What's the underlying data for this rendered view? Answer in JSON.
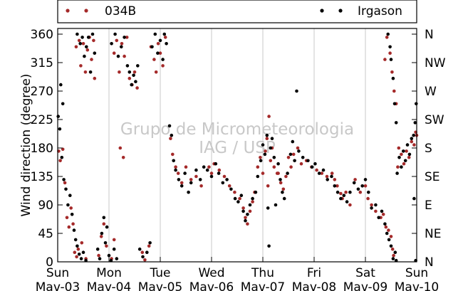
{
  "chart_data": {
    "type": "scatter",
    "ylabel": "Wind direction (degree)",
    "ylim": [
      0,
      360
    ],
    "yticks": [
      0,
      45,
      90,
      135,
      180,
      225,
      270,
      315,
      360
    ],
    "compass_ticks": [
      "N",
      "NE",
      "E",
      "SE",
      "S",
      "SW",
      "W",
      "NW",
      "N"
    ],
    "x_day_range": [
      0,
      7
    ],
    "x_ticks": [
      {
        "day": 0,
        "weekday": "Sun",
        "date": "Mav-03"
      },
      {
        "day": 1,
        "weekday": "Mon",
        "date": "Mav-04"
      },
      {
        "day": 2,
        "weekday": "Tue",
        "date": "Mav-05"
      },
      {
        "day": 3,
        "weekday": "Wed",
        "date": "Mav-06"
      },
      {
        "day": 4,
        "weekday": "Thu",
        "date": "Mav-07"
      },
      {
        "day": 5,
        "weekday": "Fri",
        "date": "Mav-08"
      },
      {
        "day": 6,
        "weekday": "Sat",
        "date": "Mav-09"
      },
      {
        "day": 7,
        "weekday": "Sun",
        "date": "Mav-10"
      }
    ],
    "grid": "vertical",
    "legend_placement": "top",
    "watermark": [
      "Grupo de Micrometeorologia",
      "IAG / USP"
    ],
    "series": [
      {
        "name": "034B",
        "color": "#a52a2a",
        "points": [
          [
            0.02,
            175
          ],
          [
            0.05,
            160
          ],
          [
            0.1,
            178
          ],
          [
            0.14,
            125
          ],
          [
            0.18,
            70
          ],
          [
            0.22,
            55
          ],
          [
            0.26,
            85
          ],
          [
            0.3,
            60
          ],
          [
            0.33,
            15
          ],
          [
            0.37,
            8
          ],
          [
            0.4,
            20
          ],
          [
            0.47,
            30
          ],
          [
            0.55,
            5
          ],
          [
            0.36,
            340
          ],
          [
            0.42,
            350
          ],
          [
            0.45,
            310
          ],
          [
            0.5,
            345
          ],
          [
            0.54,
            300
          ],
          [
            0.58,
            335
          ],
          [
            0.62,
            355
          ],
          [
            0.66,
            320
          ],
          [
            0.7,
            350
          ],
          [
            0.72,
            290
          ],
          [
            0.8,
            10
          ],
          [
            0.85,
            40
          ],
          [
            0.9,
            60
          ],
          [
            0.95,
            25
          ],
          [
            1.05,
            5
          ],
          [
            1.1,
            35
          ],
          [
            1.22,
            180
          ],
          [
            1.28,
            165
          ],
          [
            1.1,
            330
          ],
          [
            1.15,
            350
          ],
          [
            1.2,
            300
          ],
          [
            1.25,
            345
          ],
          [
            1.3,
            325
          ],
          [
            1.35,
            355
          ],
          [
            1.4,
            290
          ],
          [
            1.45,
            280
          ],
          [
            1.5,
            300
          ],
          [
            1.55,
            275
          ],
          [
            1.65,
            15
          ],
          [
            1.7,
            3
          ],
          [
            1.82,
            340
          ],
          [
            1.88,
            320
          ],
          [
            1.92,
            300
          ],
          [
            1.96,
            345
          ],
          [
            2.0,
            330
          ],
          [
            2.05,
            310
          ],
          [
            2.1,
            355
          ],
          [
            1.78,
            25
          ],
          [
            2.2,
            195
          ],
          [
            2.24,
            170
          ],
          [
            2.3,
            150
          ],
          [
            2.35,
            140
          ],
          [
            2.42,
            125
          ],
          [
            2.5,
            150
          ],
          [
            2.6,
            130
          ],
          [
            2.7,
            135
          ],
          [
            2.8,
            120
          ],
          [
            2.95,
            150
          ],
          [
            3.0,
            140
          ],
          [
            3.05,
            155
          ],
          [
            3.15,
            145
          ],
          [
            3.25,
            135
          ],
          [
            3.35,
            120
          ],
          [
            3.45,
            110
          ],
          [
            3.55,
            100
          ],
          [
            3.62,
            85
          ],
          [
            3.66,
            70
          ],
          [
            3.7,
            60
          ],
          [
            3.75,
            80
          ],
          [
            3.8,
            95
          ],
          [
            3.84,
            110
          ],
          [
            3.9,
            150
          ],
          [
            3.95,
            165
          ],
          [
            4.0,
            140
          ],
          [
            4.05,
            175
          ],
          [
            4.08,
            195
          ],
          [
            4.1,
            120
          ],
          [
            4.12,
            230
          ],
          [
            4.15,
            160
          ],
          [
            4.18,
            180
          ],
          [
            4.22,
            150
          ],
          [
            4.28,
            140
          ],
          [
            4.3,
            140
          ],
          [
            4.35,
            125
          ],
          [
            4.4,
            115
          ],
          [
            4.45,
            135
          ],
          [
            4.5,
            165
          ],
          [
            4.55,
            150
          ],
          [
            4.6,
            170
          ],
          [
            4.68,
            180
          ],
          [
            4.75,
            155
          ],
          [
            4.85,
            160
          ],
          [
            4.95,
            150
          ],
          [
            5.05,
            145
          ],
          [
            5.15,
            140
          ],
          [
            5.25,
            135
          ],
          [
            5.35,
            140
          ],
          [
            5.4,
            130
          ],
          [
            5.45,
            120
          ],
          [
            5.52,
            108
          ],
          [
            5.55,
            100
          ],
          [
            5.62,
            110
          ],
          [
            5.7,
            90
          ],
          [
            5.8,
            130
          ],
          [
            5.9,
            110
          ],
          [
            6.0,
            120
          ],
          [
            6.05,
            100
          ],
          [
            6.12,
            90
          ],
          [
            6.2,
            80
          ],
          [
            6.3,
            70
          ],
          [
            6.35,
            75
          ],
          [
            6.4,
            55
          ],
          [
            6.45,
            50
          ],
          [
            6.5,
            40
          ],
          [
            6.53,
            20
          ],
          [
            6.55,
            10
          ],
          [
            6.38,
            320
          ],
          [
            6.42,
            355
          ],
          [
            6.48,
            330
          ],
          [
            6.52,
            300
          ],
          [
            6.56,
            270
          ],
          [
            6.6,
            250
          ],
          [
            6.63,
            150
          ],
          [
            6.65,
            180
          ],
          [
            6.7,
            170
          ],
          [
            6.75,
            155
          ],
          [
            6.8,
            175
          ],
          [
            6.85,
            165
          ],
          [
            6.9,
            190
          ],
          [
            6.95,
            185
          ],
          [
            6.98,
            205
          ],
          [
            7.0,
            200
          ]
        ]
      },
      {
        "name": "Irgason",
        "color": "#000000",
        "points": [
          [
            0.01,
            230
          ],
          [
            0.04,
            210
          ],
          [
            0.08,
            165
          ],
          [
            0.12,
            130
          ],
          [
            0.16,
            115
          ],
          [
            0.2,
            90
          ],
          [
            0.24,
            105
          ],
          [
            0.28,
            75
          ],
          [
            0.32,
            50
          ],
          [
            0.35,
            35
          ],
          [
            0.38,
            25
          ],
          [
            0.42,
            12
          ],
          [
            0.46,
            5
          ],
          [
            0.5,
            15
          ],
          [
            0.55,
            2
          ],
          [
            0.06,
            280
          ],
          [
            0.1,
            250
          ],
          [
            0.38,
            360
          ],
          [
            0.44,
            345
          ],
          [
            0.48,
            355
          ],
          [
            0.52,
            325
          ],
          [
            0.56,
            340
          ],
          [
            0.6,
            355
          ],
          [
            0.64,
            300
          ],
          [
            0.68,
            360
          ],
          [
            0.72,
            330
          ],
          [
            0.78,
            20
          ],
          [
            0.82,
            5
          ],
          [
            0.86,
            45
          ],
          [
            0.9,
            70
          ],
          [
            0.93,
            30
          ],
          [
            0.96,
            55
          ],
          [
            1.0,
            10
          ],
          [
            1.04,
            2
          ],
          [
            1.1,
            20
          ],
          [
            1.15,
            5
          ],
          [
            1.05,
            345
          ],
          [
            1.12,
            360
          ],
          [
            1.18,
            325
          ],
          [
            1.24,
            340
          ],
          [
            1.3,
            355
          ],
          [
            1.36,
            310
          ],
          [
            1.4,
            300
          ],
          [
            1.44,
            280
          ],
          [
            1.48,
            295
          ],
          [
            1.52,
            285
          ],
          [
            1.56,
            310
          ],
          [
            1.6,
            20
          ],
          [
            1.66,
            8
          ],
          [
            1.74,
            15
          ],
          [
            1.8,
            30
          ],
          [
            1.84,
            340
          ],
          [
            1.9,
            360
          ],
          [
            1.95,
            330
          ],
          [
            2.0,
            350
          ],
          [
            2.05,
            320
          ],
          [
            2.08,
            360
          ],
          [
            2.12,
            345
          ],
          [
            2.18,
            215
          ],
          [
            2.22,
            200
          ],
          [
            2.26,
            160
          ],
          [
            2.3,
            145
          ],
          [
            2.36,
            130
          ],
          [
            2.42,
            120
          ],
          [
            2.48,
            140
          ],
          [
            2.55,
            110
          ],
          [
            2.6,
            125
          ],
          [
            2.7,
            145
          ],
          [
            2.78,
            130
          ],
          [
            2.85,
            150
          ],
          [
            2.92,
            145
          ],
          [
            3.0,
            135
          ],
          [
            3.08,
            155
          ],
          [
            3.14,
            140
          ],
          [
            3.22,
            125
          ],
          [
            3.3,
            130
          ],
          [
            3.38,
            115
          ],
          [
            3.46,
            100
          ],
          [
            3.52,
            95
          ],
          [
            3.58,
            105
          ],
          [
            3.62,
            80
          ],
          [
            3.66,
            65
          ],
          [
            3.7,
            75
          ],
          [
            3.75,
            90
          ],
          [
            3.8,
            100
          ],
          [
            3.86,
            110
          ],
          [
            3.9,
            135
          ],
          [
            3.96,
            160
          ],
          [
            4.0,
            185
          ],
          [
            4.04,
            170
          ],
          [
            4.08,
            200
          ],
          [
            4.1,
            85
          ],
          [
            4.12,
            25
          ],
          [
            4.15,
            180
          ],
          [
            4.18,
            195
          ],
          [
            4.22,
            165
          ],
          [
            4.25,
            90
          ],
          [
            4.3,
            155
          ],
          [
            4.34,
            130
          ],
          [
            4.38,
            110
          ],
          [
            4.42,
            100
          ],
          [
            4.48,
            140
          ],
          [
            4.54,
            170
          ],
          [
            4.58,
            190
          ],
          [
            4.62,
            160
          ],
          [
            4.66,
            270
          ],
          [
            4.7,
            175
          ],
          [
            4.78,
            165
          ],
          [
            4.88,
            160
          ],
          [
            4.96,
            150
          ],
          [
            5.02,
            155
          ],
          [
            5.1,
            140
          ],
          [
            5.18,
            145
          ],
          [
            5.26,
            130
          ],
          [
            5.34,
            135
          ],
          [
            5.4,
            120
          ],
          [
            5.46,
            110
          ],
          [
            5.52,
            100
          ],
          [
            5.58,
            105
          ],
          [
            5.64,
            95
          ],
          [
            5.7,
            110
          ],
          [
            5.78,
            125
          ],
          [
            5.86,
            115
          ],
          [
            5.94,
            120
          ],
          [
            6.0,
            130
          ],
          [
            6.06,
            110
          ],
          [
            6.12,
            85
          ],
          [
            6.2,
            90
          ],
          [
            6.26,
            70
          ],
          [
            6.32,
            80
          ],
          [
            6.38,
            60
          ],
          [
            6.42,
            45
          ],
          [
            6.46,
            35
          ],
          [
            6.5,
            25
          ],
          [
            6.54,
            5
          ],
          [
            6.58,
            15
          ],
          [
            6.6,
            2
          ],
          [
            6.44,
            360
          ],
          [
            6.48,
            340
          ],
          [
            6.5,
            320
          ],
          [
            6.54,
            290
          ],
          [
            6.57,
            250
          ],
          [
            6.6,
            220
          ],
          [
            6.62,
            140
          ],
          [
            6.66,
            165
          ],
          [
            6.7,
            150
          ],
          [
            6.74,
            175
          ],
          [
            6.78,
            160
          ],
          [
            6.82,
            185
          ],
          [
            6.86,
            170
          ],
          [
            6.9,
            195
          ],
          [
            6.94,
            200
          ],
          [
            6.97,
            220
          ],
          [
            6.99,
            250
          ],
          [
            6.95,
            100
          ],
          [
            6.98,
            2
          ]
        ]
      }
    ]
  }
}
